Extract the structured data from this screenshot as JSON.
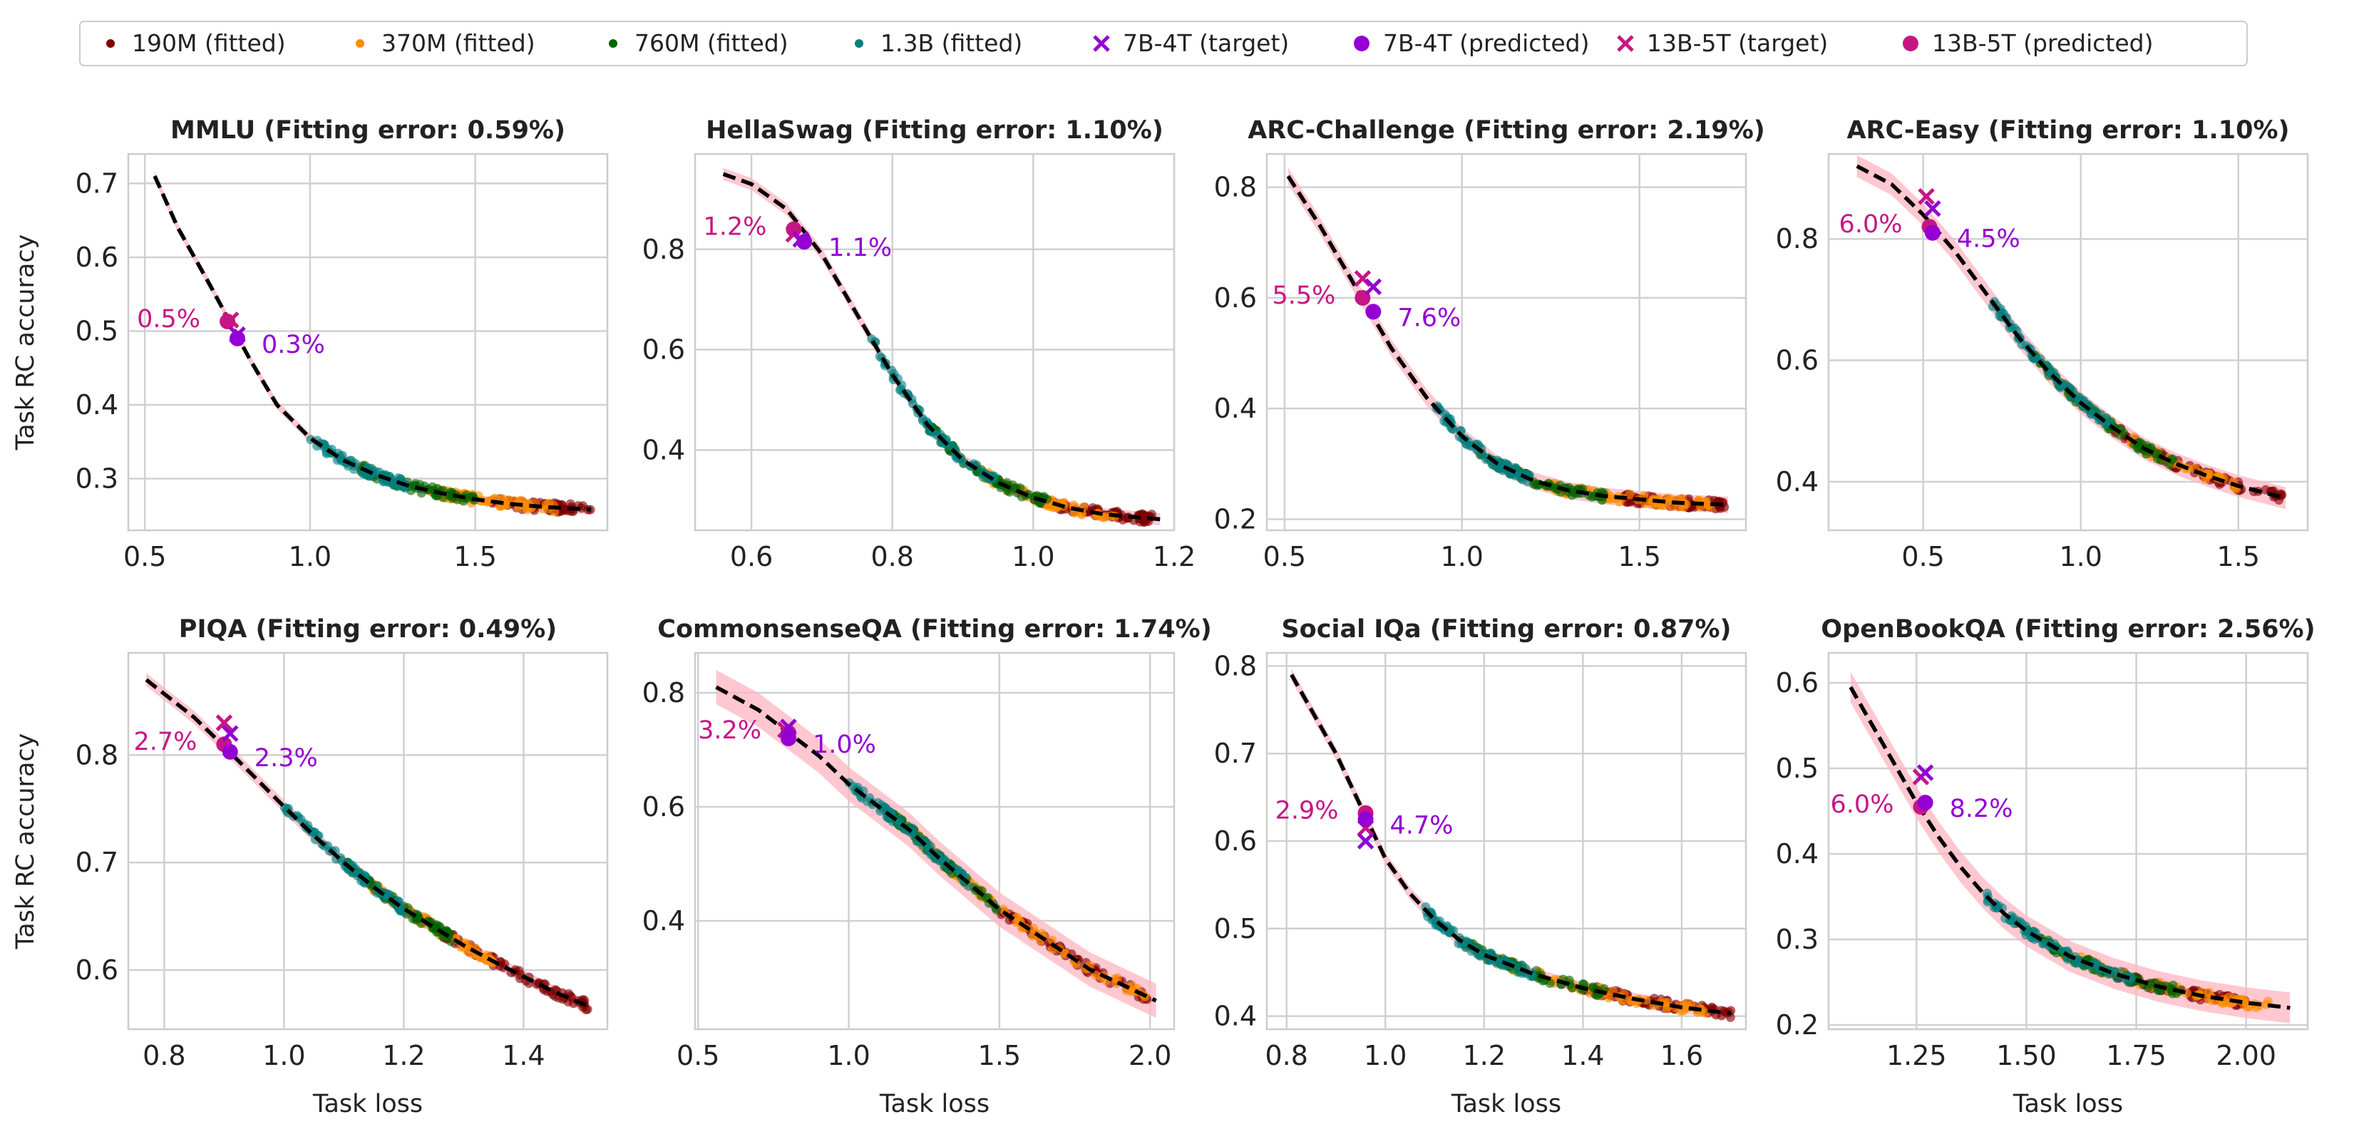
{
  "figure": {
    "legend_placement": "top-center",
    "colors": {
      "190M": "#7f0000",
      "370M": "#ff8c00",
      "760M": "#006400",
      "1.3B": "#008080",
      "7B": "#9400d3",
      "13B": "#c71585",
      "band": "#ffb6c1",
      "fit": "#000000"
    },
    "legend": [
      {
        "label": "190M (fitted)",
        "marker": "dot",
        "color_key": "190M"
      },
      {
        "label": "370M (fitted)",
        "marker": "dot",
        "color_key": "370M"
      },
      {
        "label": "760M (fitted)",
        "marker": "dot",
        "color_key": "760M"
      },
      {
        "label": "1.3B (fitted)",
        "marker": "dot",
        "color_key": "1.3B"
      },
      {
        "label": "7B-4T (target)",
        "marker": "x",
        "color_key": "7B"
      },
      {
        "label": "7B-4T (predicted)",
        "marker": "circle",
        "color_key": "7B"
      },
      {
        "label": "13B-5T (target)",
        "marker": "x",
        "color_key": "13B"
      },
      {
        "label": "13B-5T (predicted)",
        "marker": "circle",
        "color_key": "13B"
      }
    ],
    "ylabel": "Task RC accuracy",
    "xlabel": "Task loss"
  },
  "chart_data": [
    {
      "type": "scatter",
      "title": "MMLU (Fitting error: 0.59%)",
      "xlim": [
        0.45,
        1.9
      ],
      "ylim": [
        0.23,
        0.74
      ],
      "xticks": [
        0.5,
        1.0,
        1.5
      ],
      "xtick_labels": [
        "0.5",
        "1.0",
        "1.5"
      ],
      "yticks": [
        0.3,
        0.4,
        0.5,
        0.6,
        0.7
      ],
      "ytick_labels": [
        "0.3",
        "0.4",
        "0.5",
        "0.6",
        "0.7"
      ],
      "fit_curve": [
        [
          0.53,
          0.71
        ],
        [
          0.6,
          0.64
        ],
        [
          0.7,
          0.56
        ],
        [
          0.76,
          0.51
        ],
        [
          0.82,
          0.46
        ],
        [
          0.9,
          0.4
        ],
        [
          1.0,
          0.355
        ],
        [
          1.1,
          0.325
        ],
        [
          1.2,
          0.305
        ],
        [
          1.3,
          0.29
        ],
        [
          1.4,
          0.28
        ],
        [
          1.5,
          0.272
        ],
        [
          1.6,
          0.266
        ],
        [
          1.7,
          0.262
        ],
        [
          1.85,
          0.258
        ]
      ],
      "band_width": 0.006,
      "fitted_clusters": [
        {
          "size": "1.3B",
          "x": [
            1.0,
            1.3
          ]
        },
        {
          "size": "760M",
          "x": [
            1.15,
            1.5
          ]
        },
        {
          "size": "370M",
          "x": [
            1.35,
            1.75
          ]
        },
        {
          "size": "190M",
          "x": [
            1.55,
            1.85
          ]
        }
      ],
      "targets": {
        "7B": [
          0.78,
          0.495
        ],
        "13B": [
          0.76,
          0.515
        ]
      },
      "predicted": {
        "7B": [
          0.78,
          0.49
        ],
        "13B": [
          0.75,
          0.513
        ]
      },
      "labels": {
        "7B": "0.3%",
        "13B": "0.5%"
      }
    },
    {
      "type": "scatter",
      "title": "HellaSwag (Fitting error: 1.10%)",
      "xlim": [
        0.52,
        1.2
      ],
      "ylim": [
        0.24,
        0.99
      ],
      "xticks": [
        0.6,
        0.8,
        1.0,
        1.2
      ],
      "xtick_labels": [
        "0.6",
        "0.8",
        "1.0",
        "1.2"
      ],
      "yticks": [
        0.4,
        0.6,
        0.8
      ],
      "ytick_labels": [
        "0.4",
        "0.6",
        "0.8"
      ],
      "fit_curve": [
        [
          0.56,
          0.95
        ],
        [
          0.6,
          0.93
        ],
        [
          0.65,
          0.88
        ],
        [
          0.7,
          0.79
        ],
        [
          0.75,
          0.67
        ],
        [
          0.8,
          0.55
        ],
        [
          0.85,
          0.45
        ],
        [
          0.9,
          0.38
        ],
        [
          0.95,
          0.335
        ],
        [
          1.0,
          0.305
        ],
        [
          1.05,
          0.285
        ],
        [
          1.1,
          0.272
        ],
        [
          1.18,
          0.262
        ]
      ],
      "band_width": 0.012,
      "fitted_clusters": [
        {
          "size": "1.3B",
          "x": [
            0.77,
            0.95
          ]
        },
        {
          "size": "760M",
          "x": [
            0.85,
            1.02
          ]
        },
        {
          "size": "370M",
          "x": [
            0.93,
            1.12
          ]
        },
        {
          "size": "190M",
          "x": [
            1.0,
            1.17
          ]
        }
      ],
      "targets": {
        "7B": [
          0.67,
          0.82
        ],
        "13B": [
          0.66,
          0.83
        ]
      },
      "predicted": {
        "7B": [
          0.675,
          0.815
        ],
        "13B": [
          0.66,
          0.84
        ]
      },
      "labels": {
        "7B": "1.1%",
        "13B": "1.2%"
      }
    },
    {
      "type": "scatter",
      "title": "ARC-Challenge (Fitting error: 2.19%)",
      "xlim": [
        0.45,
        1.8
      ],
      "ylim": [
        0.18,
        0.86
      ],
      "xticks": [
        0.5,
        1.0,
        1.5
      ],
      "xtick_labels": [
        "0.5",
        "1.0",
        "1.5"
      ],
      "yticks": [
        0.2,
        0.4,
        0.6,
        0.8
      ],
      "ytick_labels": [
        "0.2",
        "0.4",
        "0.6",
        "0.8"
      ],
      "fit_curve": [
        [
          0.51,
          0.82
        ],
        [
          0.6,
          0.73
        ],
        [
          0.7,
          0.62
        ],
        [
          0.8,
          0.51
        ],
        [
          0.9,
          0.42
        ],
        [
          1.0,
          0.35
        ],
        [
          1.1,
          0.3
        ],
        [
          1.2,
          0.27
        ],
        [
          1.3,
          0.252
        ],
        [
          1.4,
          0.242
        ],
        [
          1.5,
          0.236
        ],
        [
          1.6,
          0.23
        ],
        [
          1.75,
          0.226
        ]
      ],
      "band_width": 0.015,
      "fitted_clusters": [
        {
          "size": "1.3B",
          "x": [
            0.92,
            1.2
          ]
        },
        {
          "size": "760M",
          "x": [
            1.05,
            1.4
          ]
        },
        {
          "size": "370M",
          "x": [
            1.2,
            1.7
          ]
        },
        {
          "size": "190M",
          "x": [
            1.45,
            1.75
          ]
        }
      ],
      "targets": {
        "7B": [
          0.75,
          0.62
        ],
        "13B": [
          0.72,
          0.635
        ]
      },
      "predicted": {
        "7B": [
          0.75,
          0.575
        ],
        "13B": [
          0.72,
          0.6
        ]
      },
      "labels": {
        "7B": "7.6%",
        "13B": "5.5%"
      }
    },
    {
      "type": "scatter",
      "title": "ARC-Easy (Fitting error: 1.10%)",
      "xlim": [
        0.2,
        1.72
      ],
      "ylim": [
        0.32,
        0.94
      ],
      "xticks": [
        0.5,
        1.0,
        1.5
      ],
      "xtick_labels": [
        "0.5",
        "1.0",
        "1.5"
      ],
      "yticks": [
        0.4,
        0.6,
        0.8
      ],
      "ytick_labels": [
        "0.4",
        "0.6",
        "0.8"
      ],
      "fit_curve": [
        [
          0.29,
          0.92
        ],
        [
          0.4,
          0.89
        ],
        [
          0.5,
          0.84
        ],
        [
          0.6,
          0.78
        ],
        [
          0.7,
          0.71
        ],
        [
          0.8,
          0.64
        ],
        [
          0.9,
          0.58
        ],
        [
          1.0,
          0.53
        ],
        [
          1.1,
          0.49
        ],
        [
          1.2,
          0.455
        ],
        [
          1.3,
          0.43
        ],
        [
          1.4,
          0.41
        ],
        [
          1.5,
          0.393
        ],
        [
          1.65,
          0.373
        ]
      ],
      "band_width": 0.018,
      "fitted_clusters": [
        {
          "size": "1.3B",
          "x": [
            0.72,
            1.1
          ]
        },
        {
          "size": "760M",
          "x": [
            0.85,
            1.3
          ]
        },
        {
          "size": "370M",
          "x": [
            0.9,
            1.5
          ]
        },
        {
          "size": "190M",
          "x": [
            1.1,
            1.65
          ]
        }
      ],
      "targets": {
        "7B": [
          0.53,
          0.85
        ],
        "13B": [
          0.51,
          0.87
        ]
      },
      "predicted": {
        "7B": [
          0.53,
          0.81
        ],
        "13B": [
          0.52,
          0.82
        ]
      },
      "labels": {
        "7B": "4.5%",
        "13B": "6.0%"
      }
    },
    {
      "type": "scatter",
      "title": "PIQA (Fitting error: 0.49%)",
      "xlim": [
        0.74,
        1.54
      ],
      "ylim": [
        0.545,
        0.895
      ],
      "xticks": [
        0.8,
        1.0,
        1.2,
        1.4
      ],
      "xtick_labels": [
        "0.8",
        "1.0",
        "1.2",
        "1.4"
      ],
      "yticks": [
        0.6,
        0.7,
        0.8
      ],
      "ytick_labels": [
        "0.6",
        "0.7",
        "0.8"
      ],
      "fit_curve": [
        [
          0.77,
          0.87
        ],
        [
          0.85,
          0.835
        ],
        [
          0.9,
          0.808
        ],
        [
          0.95,
          0.78
        ],
        [
          1.0,
          0.752
        ],
        [
          1.05,
          0.725
        ],
        [
          1.1,
          0.7
        ],
        [
          1.15,
          0.677
        ],
        [
          1.2,
          0.657
        ],
        [
          1.25,
          0.64
        ],
        [
          1.3,
          0.623
        ],
        [
          1.35,
          0.608
        ],
        [
          1.4,
          0.594
        ],
        [
          1.45,
          0.58
        ],
        [
          1.51,
          0.566
        ]
      ],
      "band_width": 0.006,
      "fitted_clusters": [
        {
          "size": "1.3B",
          "x": [
            1.0,
            1.2
          ]
        },
        {
          "size": "760M",
          "x": [
            1.1,
            1.28
          ]
        },
        {
          "size": "370M",
          "x": [
            1.12,
            1.35
          ]
        },
        {
          "size": "190M",
          "x": [
            1.25,
            1.51
          ]
        }
      ],
      "targets": {
        "7B": [
          0.91,
          0.82
        ],
        "13B": [
          0.9,
          0.83
        ]
      },
      "predicted": {
        "7B": [
          0.91,
          0.803
        ],
        "13B": [
          0.9,
          0.81
        ]
      },
      "labels": {
        "7B": "2.3%",
        "13B": "2.7%"
      }
    },
    {
      "type": "scatter",
      "title": "CommonsenseQA (Fitting error: 1.74%)",
      "xlim": [
        0.49,
        2.08
      ],
      "ylim": [
        0.21,
        0.87
      ],
      "xticks": [
        0.5,
        1.0,
        1.5,
        2.0
      ],
      "xtick_labels": [
        "0.5",
        "1.0",
        "1.5",
        "2.0"
      ],
      "yticks": [
        0.4,
        0.6,
        0.8
      ],
      "ytick_labels": [
        "0.4",
        "0.6",
        "0.8"
      ],
      "fit_curve": [
        [
          0.56,
          0.81
        ],
        [
          0.7,
          0.77
        ],
        [
          0.8,
          0.73
        ],
        [
          0.9,
          0.69
        ],
        [
          1.0,
          0.64
        ],
        [
          1.1,
          0.6
        ],
        [
          1.2,
          0.56
        ],
        [
          1.3,
          0.51
        ],
        [
          1.4,
          0.465
        ],
        [
          1.5,
          0.42
        ],
        [
          1.6,
          0.385
        ],
        [
          1.7,
          0.35
        ],
        [
          1.8,
          0.315
        ],
        [
          1.9,
          0.29
        ],
        [
          2.02,
          0.26
        ]
      ],
      "band_width": 0.03,
      "fitted_clusters": [
        {
          "size": "1.3B",
          "x": [
            1.0,
            1.4
          ]
        },
        {
          "size": "760M",
          "x": [
            1.1,
            1.5
          ]
        },
        {
          "size": "370M",
          "x": [
            1.2,
            2.0
          ]
        },
        {
          "size": "190M",
          "x": [
            1.5,
            2.0
          ]
        }
      ],
      "targets": {
        "7B": [
          0.8,
          0.74
        ],
        "13B": [
          0.79,
          0.735
        ]
      },
      "predicted": {
        "7B": [
          0.8,
          0.72
        ],
        "13B": [
          0.8,
          0.73
        ]
      },
      "labels": {
        "7B": "1.0%",
        "13B": "3.2%"
      }
    },
    {
      "type": "scatter",
      "title": "Social IQa (Fitting error: 0.87%)",
      "xlim": [
        0.76,
        1.73
      ],
      "ylim": [
        0.385,
        0.815
      ],
      "xticks": [
        0.8,
        1.0,
        1.2,
        1.4,
        1.6
      ],
      "xtick_labels": [
        "0.8",
        "1.0",
        "1.2",
        "1.4",
        "1.6"
      ],
      "yticks": [
        0.4,
        0.5,
        0.6,
        0.7,
        0.8
      ],
      "ytick_labels": [
        "0.4",
        "0.5",
        "0.6",
        "0.7",
        "0.8"
      ],
      "fit_curve": [
        [
          0.81,
          0.79
        ],
        [
          0.85,
          0.75
        ],
        [
          0.9,
          0.7
        ],
        [
          0.95,
          0.64
        ],
        [
          1.0,
          0.58
        ],
        [
          1.05,
          0.54
        ],
        [
          1.1,
          0.51
        ],
        [
          1.15,
          0.487
        ],
        [
          1.2,
          0.47
        ],
        [
          1.3,
          0.448
        ],
        [
          1.4,
          0.432
        ],
        [
          1.5,
          0.42
        ],
        [
          1.6,
          0.41
        ],
        [
          1.7,
          0.403
        ]
      ],
      "band_width": 0.007,
      "fitted_clusters": [
        {
          "size": "1.3B",
          "x": [
            1.08,
            1.3
          ]
        },
        {
          "size": "760M",
          "x": [
            1.15,
            1.45
          ]
        },
        {
          "size": "370M",
          "x": [
            1.2,
            1.65
          ]
        },
        {
          "size": "190M",
          "x": [
            1.4,
            1.7
          ]
        }
      ],
      "targets": {
        "7B": [
          0.96,
          0.6
        ],
        "13B": [
          0.96,
          0.615
        ]
      },
      "predicted": {
        "7B": [
          0.96,
          0.625
        ],
        "13B": [
          0.96,
          0.632
        ]
      },
      "labels": {
        "7B": "4.7%",
        "13B": "2.9%"
      }
    },
    {
      "type": "scatter",
      "title": "OpenBookQA (Fitting error: 2.56%)",
      "xlim": [
        1.05,
        2.14
      ],
      "ylim": [
        0.195,
        0.635
      ],
      "xticks": [
        1.25,
        1.5,
        1.75,
        2.0
      ],
      "xtick_labels": [
        "1.25",
        "1.50",
        "1.75",
        "2.00"
      ],
      "yticks": [
        0.2,
        0.3,
        0.4,
        0.5,
        0.6
      ],
      "ytick_labels": [
        "0.2",
        "0.3",
        "0.4",
        "0.5",
        "0.6"
      ],
      "fit_curve": [
        [
          1.1,
          0.595
        ],
        [
          1.15,
          0.55
        ],
        [
          1.2,
          0.505
        ],
        [
          1.25,
          0.46
        ],
        [
          1.3,
          0.42
        ],
        [
          1.35,
          0.385
        ],
        [
          1.4,
          0.355
        ],
        [
          1.45,
          0.33
        ],
        [
          1.5,
          0.31
        ],
        [
          1.6,
          0.28
        ],
        [
          1.7,
          0.26
        ],
        [
          1.8,
          0.245
        ],
        [
          1.9,
          0.234
        ],
        [
          2.0,
          0.226
        ],
        [
          2.1,
          0.22
        ]
      ],
      "band_width": 0.018,
      "fitted_clusters": [
        {
          "size": "1.3B",
          "x": [
            1.4,
            1.75
          ]
        },
        {
          "size": "760M",
          "x": [
            1.5,
            1.85
          ]
        },
        {
          "size": "370M",
          "x": [
            1.55,
            2.05
          ]
        },
        {
          "size": "190M",
          "x": [
            1.7,
            2.0
          ]
        }
      ],
      "targets": {
        "7B": [
          1.27,
          0.495
        ],
        "13B": [
          1.26,
          0.49
        ]
      },
      "predicted": {
        "7B": [
          1.27,
          0.46
        ],
        "13B": [
          1.26,
          0.455
        ]
      },
      "labels": {
        "7B": "8.2%",
        "13B": "6.0%"
      }
    }
  ]
}
